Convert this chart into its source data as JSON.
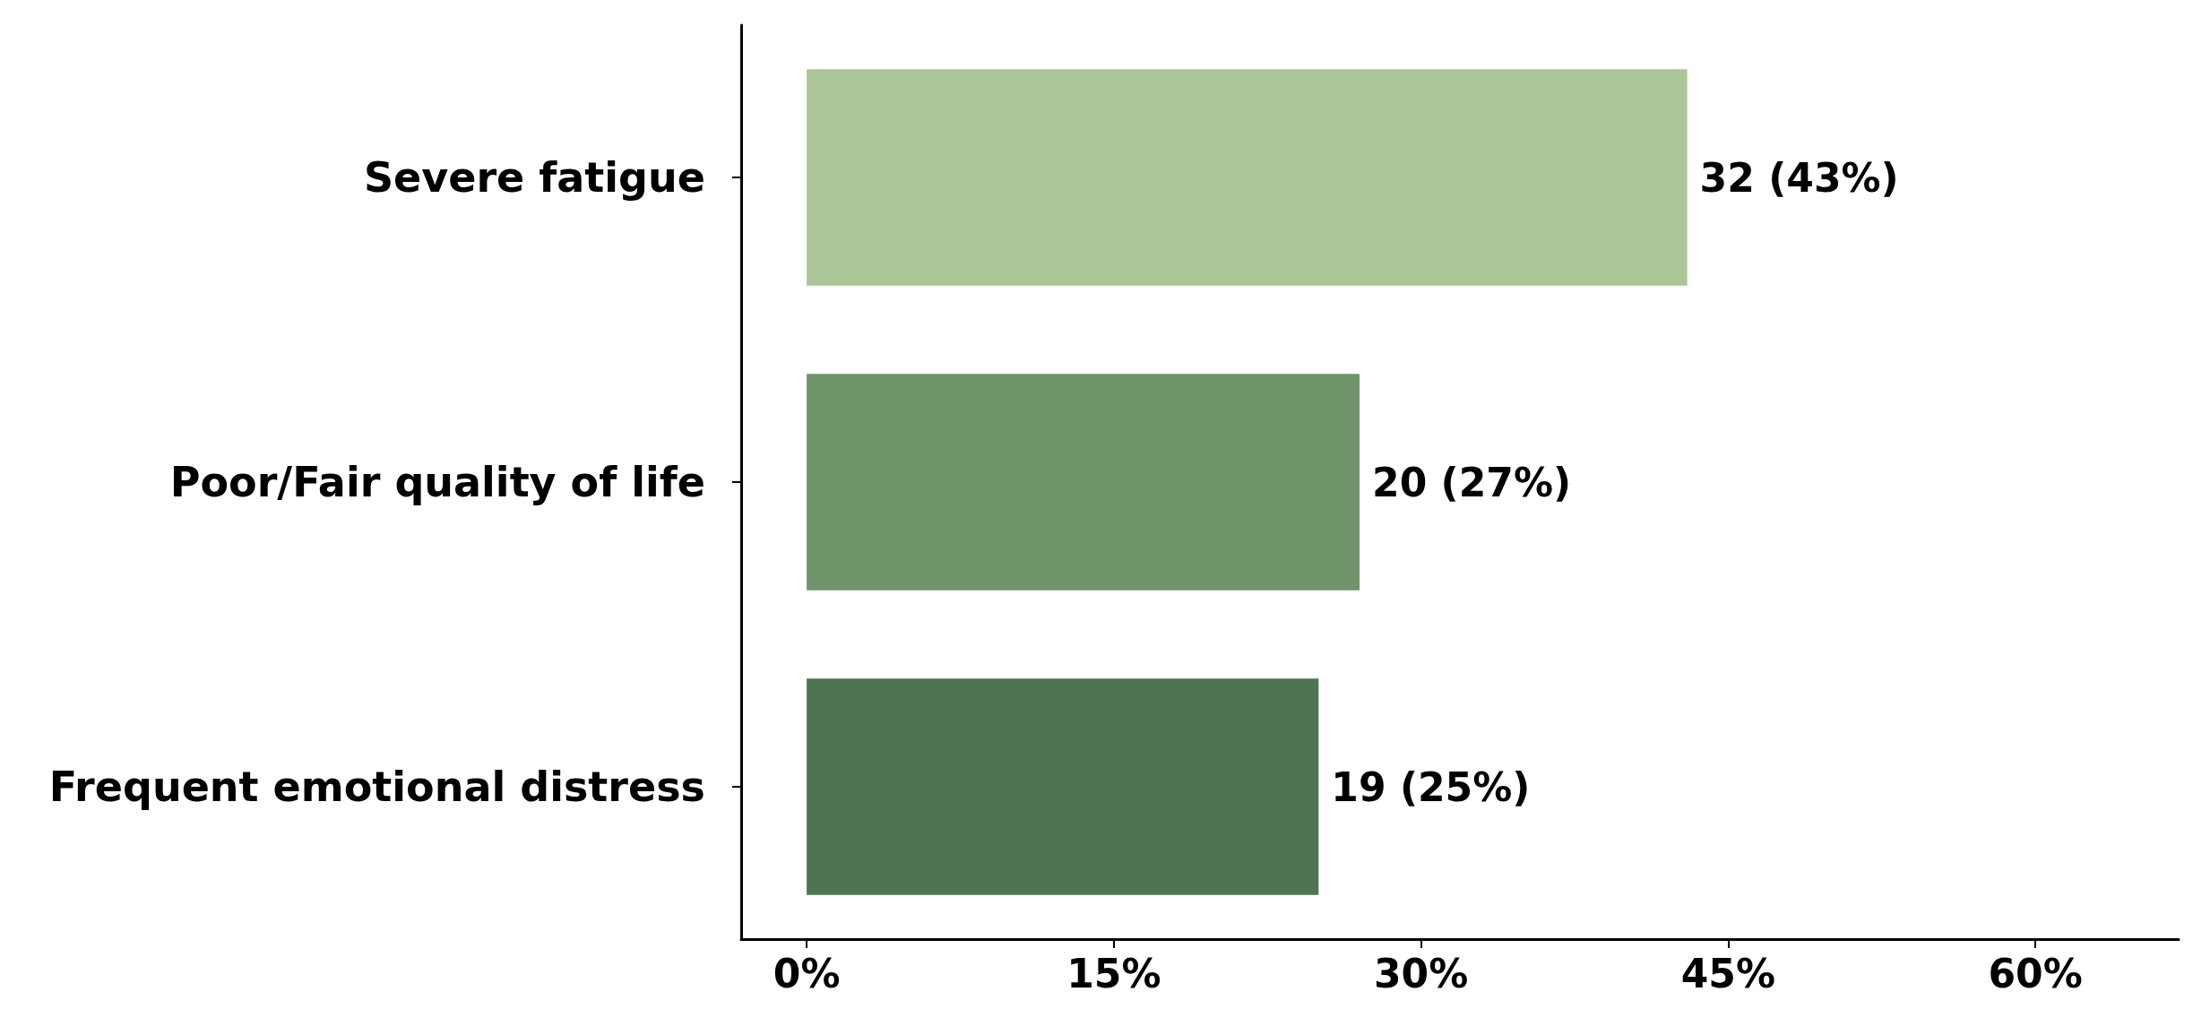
{
  "chart_data": {
    "type": "bar",
    "orientation": "horizontal",
    "categories": [
      "Severe fatigue",
      "Poor/Fair quality of life",
      "Frequent emotional distress"
    ],
    "values": [
      43,
      27,
      25
    ],
    "colors": [
      "#adc698",
      "#6f946a",
      "#4f7550"
    ],
    "value_labels": [
      "32 (43%)",
      "20 (27%)",
      "19 (25%)"
    ],
    "xlim": [
      -3.2,
      67
    ],
    "xticks": [
      {
        "value": 0,
        "label": "0%"
      },
      {
        "value": 15,
        "label": "15%"
      },
      {
        "value": 30,
        "label": "30%"
      },
      {
        "value": 45,
        "label": "45%"
      },
      {
        "value": 60,
        "label": "60%"
      }
    ],
    "grid": false
  }
}
